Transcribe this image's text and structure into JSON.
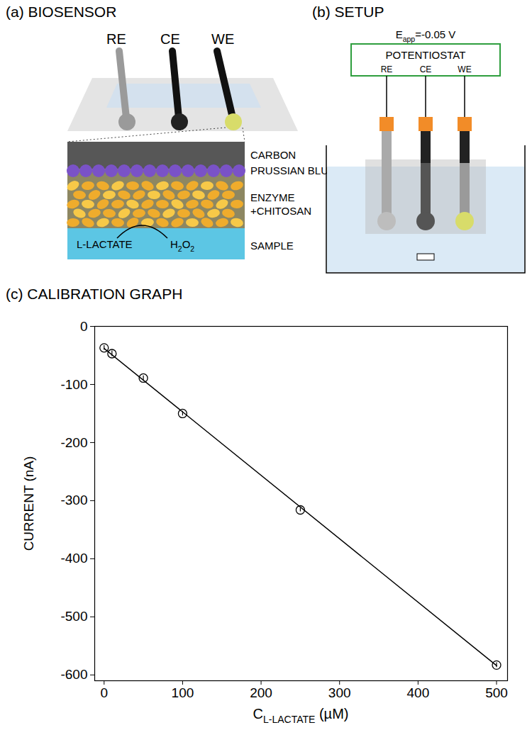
{
  "panels": {
    "a": {
      "title": "(a) BIOSENSOR",
      "electrodes": [
        "RE",
        "CE",
        "WE"
      ],
      "layers": [
        "CARBON",
        "PRUSSIAN BLUE",
        "ENZYME",
        "+CHITOSAN",
        "SAMPLE"
      ],
      "reaction": {
        "substrate": [
          {
            "t": "L-LACTATE",
            "sub": false
          }
        ],
        "product": [
          {
            "t": "H",
            "sub": false
          },
          {
            "t": "2",
            "sub": true
          },
          {
            "t": "O",
            "sub": false
          },
          {
            "t": "2",
            "sub": true
          }
        ]
      }
    },
    "b": {
      "title": "(b) SETUP",
      "potential": [
        {
          "t": "E",
          "sub": false
        },
        {
          "t": "app",
          "sub": true
        },
        {
          "t": "=-0.05 V",
          "sub": false
        }
      ],
      "instrument": "POTENTIOSTAT",
      "electrodes": [
        "RE",
        "CE",
        "WE"
      ]
    }
  },
  "chart_data": {
    "type": "scatter",
    "title": "(c) CALIBRATION GRAPH",
    "xlabel": [
      {
        "t": "C",
        "sub": false
      },
      {
        "t": "L-LACTATE",
        "sub": true
      },
      {
        "t": " (µM)",
        "sub": false
      }
    ],
    "ylabel": "CURRENT (nA)",
    "x": [
      0,
      10,
      50,
      100,
      250,
      500
    ],
    "values": [
      -37,
      -47,
      -89,
      -150,
      -316,
      -583
    ],
    "error": [
      4,
      5,
      4,
      4,
      3,
      4
    ],
    "fit": {
      "x": [
        0,
        500
      ],
      "values": [
        -38,
        -584
      ]
    },
    "marker": "circle",
    "color": "#000000",
    "xlim": [
      -12,
      514
    ],
    "ylim": [
      -610,
      0
    ],
    "xticks": [
      0,
      100,
      200,
      300,
      400,
      500
    ],
    "yticks": [
      0,
      -100,
      -200,
      -300,
      -400,
      -500,
      -600
    ],
    "grid": false
  }
}
